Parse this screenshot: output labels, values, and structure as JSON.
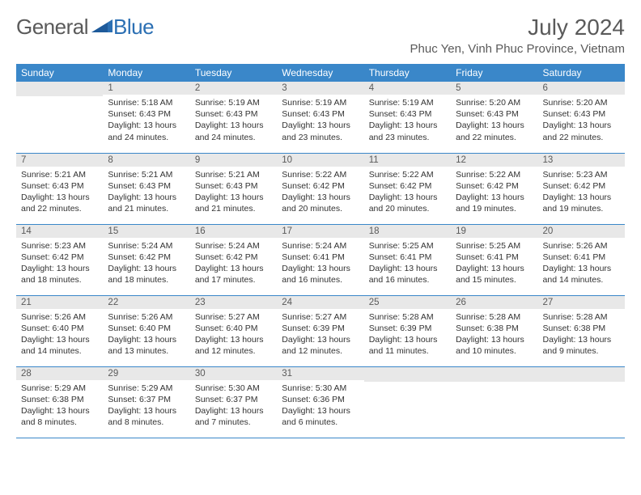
{
  "logo": {
    "general": "General",
    "blue": "Blue"
  },
  "title": "July 2024",
  "location": "Phuc Yen, Vinh Phuc Province, Vietnam",
  "colors": {
    "header_bg": "#3a87c9",
    "header_text": "#ffffff",
    "daynum_bg": "#e8e8e8",
    "row_border": "#3a87c9",
    "logo_gray": "#5a5a5a",
    "logo_blue": "#2b6fb3",
    "title_color": "#5a5a5a",
    "text_color": "#333333",
    "background": "#ffffff"
  },
  "typography": {
    "title_fontsize": 28,
    "location_fontsize": 15,
    "logo_fontsize": 26,
    "header_fontsize": 12,
    "daynum_fontsize": 11.5,
    "detail_fontsize": 10.5
  },
  "day_headers": [
    "Sunday",
    "Monday",
    "Tuesday",
    "Wednesday",
    "Thursday",
    "Friday",
    "Saturday"
  ],
  "weeks": [
    [
      null,
      {
        "n": "1",
        "sr": "Sunrise: 5:18 AM",
        "ss": "Sunset: 6:43 PM",
        "d1": "Daylight: 13 hours",
        "d2": "and 24 minutes."
      },
      {
        "n": "2",
        "sr": "Sunrise: 5:19 AM",
        "ss": "Sunset: 6:43 PM",
        "d1": "Daylight: 13 hours",
        "d2": "and 24 minutes."
      },
      {
        "n": "3",
        "sr": "Sunrise: 5:19 AM",
        "ss": "Sunset: 6:43 PM",
        "d1": "Daylight: 13 hours",
        "d2": "and 23 minutes."
      },
      {
        "n": "4",
        "sr": "Sunrise: 5:19 AM",
        "ss": "Sunset: 6:43 PM",
        "d1": "Daylight: 13 hours",
        "d2": "and 23 minutes."
      },
      {
        "n": "5",
        "sr": "Sunrise: 5:20 AM",
        "ss": "Sunset: 6:43 PM",
        "d1": "Daylight: 13 hours",
        "d2": "and 22 minutes."
      },
      {
        "n": "6",
        "sr": "Sunrise: 5:20 AM",
        "ss": "Sunset: 6:43 PM",
        "d1": "Daylight: 13 hours",
        "d2": "and 22 minutes."
      }
    ],
    [
      {
        "n": "7",
        "sr": "Sunrise: 5:21 AM",
        "ss": "Sunset: 6:43 PM",
        "d1": "Daylight: 13 hours",
        "d2": "and 22 minutes."
      },
      {
        "n": "8",
        "sr": "Sunrise: 5:21 AM",
        "ss": "Sunset: 6:43 PM",
        "d1": "Daylight: 13 hours",
        "d2": "and 21 minutes."
      },
      {
        "n": "9",
        "sr": "Sunrise: 5:21 AM",
        "ss": "Sunset: 6:43 PM",
        "d1": "Daylight: 13 hours",
        "d2": "and 21 minutes."
      },
      {
        "n": "10",
        "sr": "Sunrise: 5:22 AM",
        "ss": "Sunset: 6:42 PM",
        "d1": "Daylight: 13 hours",
        "d2": "and 20 minutes."
      },
      {
        "n": "11",
        "sr": "Sunrise: 5:22 AM",
        "ss": "Sunset: 6:42 PM",
        "d1": "Daylight: 13 hours",
        "d2": "and 20 minutes."
      },
      {
        "n": "12",
        "sr": "Sunrise: 5:22 AM",
        "ss": "Sunset: 6:42 PM",
        "d1": "Daylight: 13 hours",
        "d2": "and 19 minutes."
      },
      {
        "n": "13",
        "sr": "Sunrise: 5:23 AM",
        "ss": "Sunset: 6:42 PM",
        "d1": "Daylight: 13 hours",
        "d2": "and 19 minutes."
      }
    ],
    [
      {
        "n": "14",
        "sr": "Sunrise: 5:23 AM",
        "ss": "Sunset: 6:42 PM",
        "d1": "Daylight: 13 hours",
        "d2": "and 18 minutes."
      },
      {
        "n": "15",
        "sr": "Sunrise: 5:24 AM",
        "ss": "Sunset: 6:42 PM",
        "d1": "Daylight: 13 hours",
        "d2": "and 18 minutes."
      },
      {
        "n": "16",
        "sr": "Sunrise: 5:24 AM",
        "ss": "Sunset: 6:42 PM",
        "d1": "Daylight: 13 hours",
        "d2": "and 17 minutes."
      },
      {
        "n": "17",
        "sr": "Sunrise: 5:24 AM",
        "ss": "Sunset: 6:41 PM",
        "d1": "Daylight: 13 hours",
        "d2": "and 16 minutes."
      },
      {
        "n": "18",
        "sr": "Sunrise: 5:25 AM",
        "ss": "Sunset: 6:41 PM",
        "d1": "Daylight: 13 hours",
        "d2": "and 16 minutes."
      },
      {
        "n": "19",
        "sr": "Sunrise: 5:25 AM",
        "ss": "Sunset: 6:41 PM",
        "d1": "Daylight: 13 hours",
        "d2": "and 15 minutes."
      },
      {
        "n": "20",
        "sr": "Sunrise: 5:26 AM",
        "ss": "Sunset: 6:41 PM",
        "d1": "Daylight: 13 hours",
        "d2": "and 14 minutes."
      }
    ],
    [
      {
        "n": "21",
        "sr": "Sunrise: 5:26 AM",
        "ss": "Sunset: 6:40 PM",
        "d1": "Daylight: 13 hours",
        "d2": "and 14 minutes."
      },
      {
        "n": "22",
        "sr": "Sunrise: 5:26 AM",
        "ss": "Sunset: 6:40 PM",
        "d1": "Daylight: 13 hours",
        "d2": "and 13 minutes."
      },
      {
        "n": "23",
        "sr": "Sunrise: 5:27 AM",
        "ss": "Sunset: 6:40 PM",
        "d1": "Daylight: 13 hours",
        "d2": "and 12 minutes."
      },
      {
        "n": "24",
        "sr": "Sunrise: 5:27 AM",
        "ss": "Sunset: 6:39 PM",
        "d1": "Daylight: 13 hours",
        "d2": "and 12 minutes."
      },
      {
        "n": "25",
        "sr": "Sunrise: 5:28 AM",
        "ss": "Sunset: 6:39 PM",
        "d1": "Daylight: 13 hours",
        "d2": "and 11 minutes."
      },
      {
        "n": "26",
        "sr": "Sunrise: 5:28 AM",
        "ss": "Sunset: 6:38 PM",
        "d1": "Daylight: 13 hours",
        "d2": "and 10 minutes."
      },
      {
        "n": "27",
        "sr": "Sunrise: 5:28 AM",
        "ss": "Sunset: 6:38 PM",
        "d1": "Daylight: 13 hours",
        "d2": "and 9 minutes."
      }
    ],
    [
      {
        "n": "28",
        "sr": "Sunrise: 5:29 AM",
        "ss": "Sunset: 6:38 PM",
        "d1": "Daylight: 13 hours",
        "d2": "and 8 minutes."
      },
      {
        "n": "29",
        "sr": "Sunrise: 5:29 AM",
        "ss": "Sunset: 6:37 PM",
        "d1": "Daylight: 13 hours",
        "d2": "and 8 minutes."
      },
      {
        "n": "30",
        "sr": "Sunrise: 5:30 AM",
        "ss": "Sunset: 6:37 PM",
        "d1": "Daylight: 13 hours",
        "d2": "and 7 minutes."
      },
      {
        "n": "31",
        "sr": "Sunrise: 5:30 AM",
        "ss": "Sunset: 6:36 PM",
        "d1": "Daylight: 13 hours",
        "d2": "and 6 minutes."
      },
      null,
      null,
      null
    ]
  ]
}
